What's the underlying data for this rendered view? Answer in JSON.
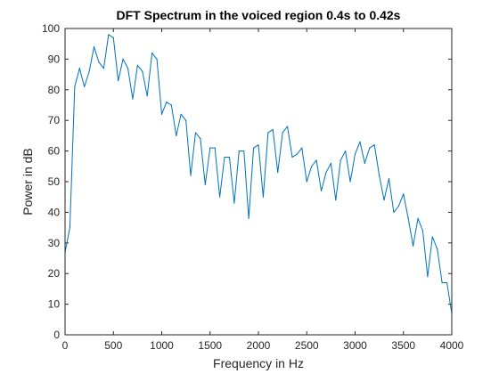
{
  "chart_data": {
    "type": "line",
    "title": "DFT Spectrum in the voiced region 0.4s to 0.42s",
    "xlabel": "Frequency in Hz",
    "ylabel": "Power in dB",
    "xlim": [
      0,
      4000
    ],
    "ylim": [
      0,
      100
    ],
    "xticks": [
      0,
      500,
      1000,
      1500,
      2000,
      2500,
      3000,
      3500,
      4000
    ],
    "yticks": [
      0,
      10,
      20,
      30,
      40,
      50,
      60,
      70,
      80,
      90,
      100
    ],
    "grid": false,
    "line_color": "#0072BD",
    "x": [
      0,
      50,
      100,
      150,
      200,
      250,
      300,
      350,
      400,
      450,
      500,
      550,
      600,
      650,
      700,
      750,
      800,
      850,
      900,
      950,
      1000,
      1050,
      1100,
      1150,
      1200,
      1250,
      1300,
      1350,
      1400,
      1450,
      1500,
      1550,
      1600,
      1650,
      1700,
      1750,
      1800,
      1850,
      1900,
      1950,
      2000,
      2050,
      2100,
      2150,
      2200,
      2250,
      2300,
      2350,
      2400,
      2450,
      2500,
      2550,
      2600,
      2650,
      2700,
      2750,
      2800,
      2850,
      2900,
      2950,
      3000,
      3050,
      3100,
      3150,
      3200,
      3250,
      3300,
      3350,
      3400,
      3450,
      3500,
      3550,
      3600,
      3650,
      3700,
      3750,
      3800,
      3850,
      3900,
      3950,
      4000
    ],
    "values": [
      27,
      35,
      81,
      87,
      81,
      86,
      94,
      89,
      87,
      98,
      97,
      83,
      90,
      87,
      77,
      88,
      86,
      78,
      92,
      90,
      72,
      76,
      75,
      65,
      72,
      70,
      52,
      66,
      64,
      49,
      61,
      61,
      45,
      58,
      58,
      43,
      60,
      60,
      38,
      61,
      62,
      45,
      66,
      67,
      53,
      66,
      68,
      58,
      59,
      61,
      50,
      55,
      57,
      47,
      53,
      56,
      44,
      57,
      60,
      50,
      59,
      63,
      56,
      61,
      62,
      52,
      44,
      51,
      40,
      42,
      46,
      38,
      29,
      38,
      34,
      19,
      32,
      28,
      17,
      17,
      7
    ]
  }
}
